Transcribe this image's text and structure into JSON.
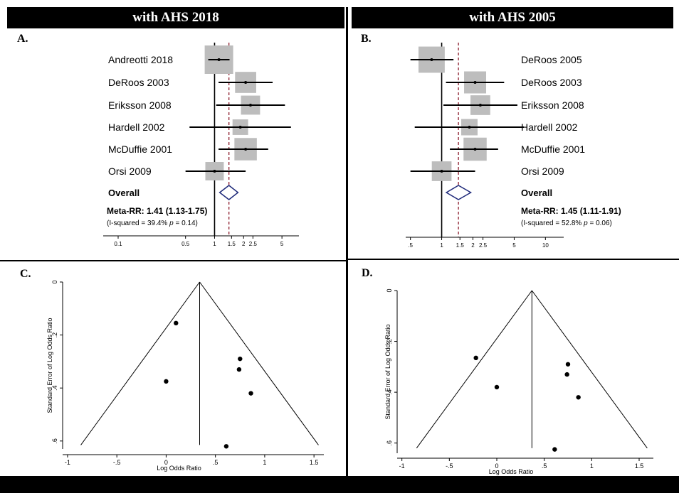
{
  "headers": {
    "left": "with AHS 2018",
    "right": "with AHS 2005"
  },
  "panel_labels": {
    "a": "A.",
    "b": "B.",
    "c": "C.",
    "d": "D."
  },
  "chart_data": [
    {
      "id": "A",
      "type": "forest",
      "header": "with AHS 2018",
      "scale": "log",
      "xlim": [
        0.07,
        7.5
      ],
      "xticks": [
        0.1,
        0.5,
        1,
        1.5,
        2,
        2.5,
        5
      ],
      "xtick_labels": [
        "0.1",
        "0.5",
        "1",
        "1.5",
        "2",
        "2.5",
        "5"
      ],
      "null_line": 1,
      "summary_line": 1.41,
      "studies": [
        {
          "label": "Andreotti 2018",
          "rr": 1.11,
          "ci": [
            0.86,
            1.43
          ],
          "weight": 1.0
        },
        {
          "label": "DeRoos 2003",
          "rr": 2.1,
          "ci": [
            1.1,
            4.0
          ],
          "weight": 0.55
        },
        {
          "label": "Eriksson 2008",
          "rr": 2.36,
          "ci": [
            1.04,
            5.37
          ],
          "weight": 0.45
        },
        {
          "label": "Hardell 2002",
          "rr": 1.85,
          "ci": [
            0.55,
            6.2
          ],
          "weight": 0.3
        },
        {
          "label": "McDuffie 2001",
          "rr": 2.1,
          "ci": [
            1.1,
            3.6
          ],
          "weight": 0.62
        },
        {
          "label": "Orsi 2009",
          "rr": 1.0,
          "ci": [
            0.5,
            2.1
          ],
          "weight": 0.42
        }
      ],
      "overall": {
        "label": "Overall",
        "rr": 1.41,
        "ci": [
          1.13,
          1.75
        ]
      },
      "meta_text": "Meta-RR: 1.41 (1.13-1.75)",
      "het_prefix": "(I-squared = 39.4%  ",
      "het_p_label": "p",
      "het_suffix": " = 0.14)"
    },
    {
      "id": "B",
      "type": "forest",
      "header": "with AHS 2005",
      "scale": "log",
      "xlim": [
        0.45,
        15
      ],
      "xticks": [
        0.5,
        1,
        1.5,
        2,
        2.5,
        5,
        10
      ],
      "xtick_labels": [
        ".5",
        "1",
        "1.5",
        "2",
        "2.5",
        "5",
        "10"
      ],
      "null_line": 1,
      "summary_line": 1.45,
      "studies": [
        {
          "label": "DeRoos 2005",
          "rr": 0.8,
          "ci": [
            0.5,
            1.3
          ],
          "weight": 0.85
        },
        {
          "label": "DeRoos 2003",
          "rr": 2.1,
          "ci": [
            1.1,
            4.0
          ],
          "weight": 0.6
        },
        {
          "label": "Eriksson 2008",
          "rr": 2.36,
          "ci": [
            1.04,
            5.37
          ],
          "weight": 0.48
        },
        {
          "label": "Hardell 2002",
          "rr": 1.85,
          "ci": [
            0.55,
            6.2
          ],
          "weight": 0.33
        },
        {
          "label": "McDuffie 2001",
          "rr": 2.1,
          "ci": [
            1.2,
            3.5
          ],
          "weight": 0.66
        },
        {
          "label": "Orsi 2009",
          "rr": 1.0,
          "ci": [
            0.5,
            2.1
          ],
          "weight": 0.48
        }
      ],
      "overall": {
        "label": "Overall",
        "rr": 1.45,
        "ci": [
          1.11,
          1.91
        ]
      },
      "meta_text": "Meta-RR: 1.45 (1.11-1.91)",
      "het_prefix": "(I-squared = 52.8%  ",
      "het_p_label": "p",
      "het_suffix": " = 0.06)"
    },
    {
      "id": "C",
      "type": "scatter",
      "subtype": "funnel",
      "xlabel": "Log Odds Ratio",
      "ylabel": "Standard Error of Log Odds Ratio",
      "xlim": [
        -1.05,
        1.6
      ],
      "ylim": [
        0.63,
        0
      ],
      "xticks": [
        -1,
        -0.5,
        0,
        0.5,
        1,
        1.5
      ],
      "xtick_labels": [
        "-1",
        "-.5",
        "0",
        ".5",
        "1",
        "1.5"
      ],
      "yticks": [
        0,
        0.2,
        0.4,
        0.6
      ],
      "ytick_labels": [
        "0",
        ".2",
        ".4",
        ".6"
      ],
      "pooled": 0.34,
      "funnel_bottom_se": 0.615,
      "points": [
        {
          "x": 0.1,
          "y": 0.155
        },
        {
          "x": 0.75,
          "y": 0.29
        },
        {
          "x": 0.74,
          "y": 0.33
        },
        {
          "x": 0.0,
          "y": 0.375
        },
        {
          "x": 0.86,
          "y": 0.42
        },
        {
          "x": 0.61,
          "y": 0.62
        }
      ]
    },
    {
      "id": "D",
      "type": "scatter",
      "subtype": "funnel",
      "xlabel": "Log Odds Ratio",
      "ylabel": "Standard Error of Log Odds Ratio",
      "xlim": [
        -1.05,
        1.65
      ],
      "ylim": [
        0.64,
        0
      ],
      "xticks": [
        -1,
        -0.5,
        0,
        0.5,
        1,
        1.5
      ],
      "xtick_labels": [
        "-1",
        "-.5",
        "0",
        ".5",
        "1",
        "1.5"
      ],
      "yticks": [
        0,
        0.2,
        0.4,
        0.6
      ],
      "ytick_labels": [
        "0",
        ".2",
        ".4",
        ".6"
      ],
      "pooled": 0.37,
      "funnel_bottom_se": 0.62,
      "points": [
        {
          "x": -0.22,
          "y": 0.265
        },
        {
          "x": 0.75,
          "y": 0.29
        },
        {
          "x": 0.74,
          "y": 0.33
        },
        {
          "x": 0.0,
          "y": 0.38
        },
        {
          "x": 0.86,
          "y": 0.42
        },
        {
          "x": 0.61,
          "y": 0.625
        }
      ]
    }
  ]
}
